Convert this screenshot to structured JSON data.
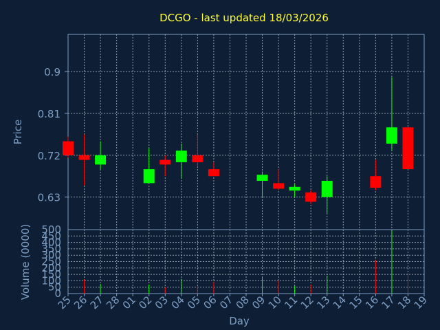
{
  "chart_data": {
    "type": "candlestick",
    "title": "DCGO - last updated 18/03/2026",
    "xlabel": "Day",
    "price_ylabel": "Price",
    "volume_ylabel": "Volume (0000)",
    "x_ticks": [
      "25",
      "26",
      "27",
      "28",
      "01",
      "02",
      "03",
      "04",
      "05",
      "06",
      "07",
      "08",
      "09",
      "10",
      "11",
      "12",
      "13",
      "14",
      "15",
      "16",
      "17",
      "18",
      "19"
    ],
    "price_ticks": [
      "0.9",
      "0.81",
      "0.72",
      "0.63"
    ],
    "price_tick_values": [
      0.9,
      0.81,
      0.72,
      0.63
    ],
    "price_ylim": [
      0.56,
      0.98
    ],
    "volume_ticks": [
      "500",
      "450",
      "400",
      "350",
      "300",
      "250",
      "200",
      "150",
      "100",
      "50",
      "0"
    ],
    "volume_tick_values": [
      500,
      450,
      400,
      350,
      300,
      250,
      200,
      150,
      100,
      50,
      0
    ],
    "volume_ylim": [
      0,
      500
    ],
    "colors": {
      "up": "#00ff00",
      "down": "#ff0000",
      "grid": "#c8d0dc",
      "axis": "#7e9ec4",
      "background": "#0e1f35"
    },
    "candles": [
      {
        "x": "25",
        "open": 0.75,
        "high": 0.76,
        "low": 0.715,
        "close": 0.72,
        "volume": 0
      },
      {
        "x": "26",
        "open": 0.72,
        "high": 0.765,
        "low": 0.655,
        "close": 0.71,
        "volume": 110
      },
      {
        "x": "27",
        "open": 0.7,
        "high": 0.75,
        "low": 0.69,
        "close": 0.72,
        "volume": 75
      },
      {
        "x": "02",
        "open": 0.66,
        "high": 0.735,
        "low": 0.66,
        "close": 0.69,
        "volume": 70
      },
      {
        "x": "03",
        "open": 0.71,
        "high": 0.72,
        "low": 0.675,
        "close": 0.7,
        "volume": 50
      },
      {
        "x": "04",
        "open": 0.705,
        "high": 0.745,
        "low": 0.67,
        "close": 0.73,
        "volume": 115
      },
      {
        "x": "05",
        "open": 0.72,
        "high": 0.765,
        "low": 0.695,
        "close": 0.705,
        "volume": 60
      },
      {
        "x": "06",
        "open": 0.69,
        "high": 0.705,
        "low": 0.675,
        "close": 0.675,
        "volume": 90
      },
      {
        "x": "09",
        "open": 0.665,
        "high": 0.685,
        "low": 0.63,
        "close": 0.678,
        "volume": 125
      },
      {
        "x": "10",
        "open": 0.66,
        "high": 0.69,
        "low": 0.645,
        "close": 0.648,
        "volume": 105
      },
      {
        "x": "11",
        "open": 0.644,
        "high": 0.658,
        "low": 0.63,
        "close": 0.652,
        "volume": 60
      },
      {
        "x": "12",
        "open": 0.64,
        "high": 0.645,
        "low": 0.615,
        "close": 0.62,
        "volume": 70
      },
      {
        "x": "13",
        "open": 0.63,
        "high": 0.675,
        "low": 0.595,
        "close": 0.665,
        "volume": 140
      },
      {
        "x": "16",
        "open": 0.675,
        "high": 0.71,
        "low": 0.645,
        "close": 0.65,
        "volume": 260
      },
      {
        "x": "17",
        "open": 0.745,
        "high": 0.888,
        "low": 0.73,
        "close": 0.78,
        "volume": 495
      },
      {
        "x": "18",
        "open": 0.78,
        "high": 0.782,
        "low": 0.69,
        "close": 0.69,
        "volume": 160
      }
    ]
  }
}
